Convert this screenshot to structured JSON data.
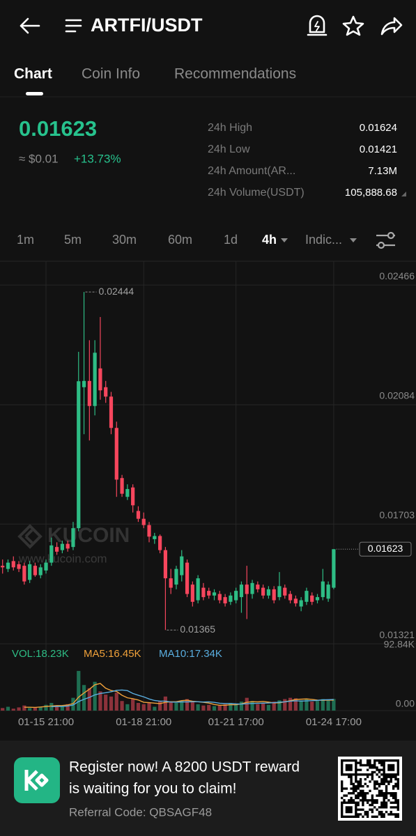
{
  "header": {
    "title": "ARTFI/USDT"
  },
  "tabs": [
    "Chart",
    "Coin Info",
    "Recommendations"
  ],
  "price": {
    "last": "0.01623",
    "usd": "≈ $0.01",
    "change": "+13.73%"
  },
  "stats": [
    [
      "24h High",
      "0.01624"
    ],
    [
      "24h Low",
      "0.01421"
    ],
    [
      "24h Amount(AR...",
      "7.13M"
    ],
    [
      "24h Volume(USDT)",
      "105,888.68"
    ]
  ],
  "timeframes": [
    "1m",
    "5m",
    "30m",
    "60m",
    "1d",
    "4h",
    "Indic..."
  ],
  "watermark": [
    "KUCOIN",
    "www.kucoin.com"
  ],
  "chart_data": [
    {
      "type": "candlestick",
      "categories": [
        null,
        null,
        null,
        null,
        null,
        null,
        null,
        null,
        "01-15 21:00",
        null,
        null,
        null,
        null,
        null,
        null,
        null,
        null,
        null,
        null,
        null,
        null,
        null,
        null,
        null,
        null,
        null,
        "01-18 21:00",
        null,
        null,
        null,
        null,
        null,
        null,
        null,
        null,
        null,
        null,
        null,
        null,
        null,
        null,
        null,
        null,
        "01-21 17:00",
        null,
        null,
        null,
        null,
        null,
        null,
        null,
        null,
        null,
        null,
        null,
        null,
        null,
        null,
        null,
        null,
        null,
        "01-24 17:00"
      ],
      "open": [
        0.0157,
        0.0156,
        0.01585,
        0.01575,
        0.0157,
        0.01525,
        0.0157,
        0.0154,
        0.01555,
        0.0158,
        0.0163,
        0.0162,
        0.0164,
        0.0163,
        0.0169,
        0.0214,
        0.0216,
        0.0208,
        0.022,
        0.0214,
        0.0211,
        0.0201,
        0.0185,
        0.0179,
        0.0182,
        0.01745,
        0.0172,
        0.017,
        0.01655,
        0.01665,
        0.0162,
        0.0153,
        0.0151,
        0.0154,
        0.0158,
        0.0151,
        0.0146,
        0.015,
        0.0149,
        0.01475,
        0.0148,
        0.0147,
        0.01455,
        0.0146,
        0.0147,
        0.0151,
        0.0148,
        0.0151,
        0.015,
        0.01475,
        0.01495,
        0.0147,
        0.015,
        0.0148,
        0.01465,
        0.0144,
        0.01455,
        0.01475,
        0.0146,
        0.0147,
        0.01465,
        0.015
      ],
      "high": [
        0.0159,
        0.0159,
        0.016,
        0.01585,
        0.0158,
        0.01585,
        0.0158,
        0.01575,
        0.0159,
        0.0166,
        0.01645,
        0.0165,
        0.0165,
        0.0171,
        0.02253,
        0.02444,
        0.0229,
        0.0229,
        0.02364,
        0.0216,
        0.02125,
        0.0203,
        0.0186,
        0.0183,
        0.0183,
        0.0176,
        0.0174,
        0.0171,
        0.01675,
        0.0167,
        0.0163,
        0.0156,
        0.0157,
        0.0162,
        0.0159,
        0.0152,
        0.0154,
        0.01515,
        0.015,
        0.01495,
        0.0149,
        0.0148,
        0.01485,
        0.015,
        0.0152,
        0.0157,
        0.01525,
        0.0152,
        0.0151,
        0.01505,
        0.01505,
        0.0155,
        0.0151,
        0.0149,
        0.01475,
        0.0147,
        0.015,
        0.01485,
        0.0148,
        0.0156,
        0.0152,
        0.01623
      ],
      "low": [
        0.01545,
        0.0155,
        0.01555,
        0.0155,
        0.0151,
        0.01515,
        0.01535,
        0.0153,
        0.01545,
        0.0157,
        0.01605,
        0.0161,
        0.01615,
        0.0162,
        0.0168,
        0.0199,
        0.0197,
        0.0205,
        0.021,
        0.0209,
        0.0199,
        0.0179,
        0.0179,
        0.0178,
        0.0174,
        0.0171,
        0.0169,
        0.01645,
        0.0164,
        0.0161,
        0.01365,
        0.0148,
        0.01495,
        0.0152,
        0.0147,
        0.0144,
        0.0145,
        0.0146,
        0.01465,
        0.0146,
        0.0145,
        0.0144,
        0.01445,
        0.0145,
        0.0142,
        0.014,
        0.01465,
        0.01485,
        0.01465,
        0.01465,
        0.0145,
        0.0146,
        0.01465,
        0.0145,
        0.0144,
        0.01425,
        0.01445,
        0.01445,
        0.0145,
        0.0146,
        0.01455,
        0.01495
      ],
      "close": [
        0.01565,
        0.0158,
        0.01565,
        0.0156,
        0.0152,
        0.01575,
        0.0154,
        0.01565,
        0.0158,
        0.01635,
        0.01615,
        0.0164,
        0.01625,
        0.0169,
        0.02159,
        0.0216,
        0.0208,
        0.0225,
        0.0213,
        0.0211,
        0.0201,
        0.01845,
        0.018,
        0.01815,
        0.01763,
        0.0172,
        0.017,
        0.01663,
        0.01665,
        0.0162,
        0.0153,
        0.015,
        0.0156,
        0.016,
        0.0148,
        0.01455,
        0.0153,
        0.0147,
        0.01475,
        0.01485,
        0.0146,
        0.0145,
        0.01475,
        0.0149,
        0.0151,
        0.0148,
        0.01515,
        0.01495,
        0.01475,
        0.01495,
        0.0146,
        0.01505,
        0.01475,
        0.0146,
        0.0145,
        0.0146,
        0.0149,
        0.01455,
        0.0147,
        0.0152,
        0.0151,
        0.01623
      ],
      "up_color": "#2ebd85",
      "down_color": "#f6465d",
      "ylim": [
        0.01319,
        0.02542
      ],
      "yticks": [
        0.02466,
        0.02084,
        0.01703,
        0.01321
      ],
      "grid": true
    },
    {
      "type": "bar",
      "series": [
        {
          "name": "VOL:18.23K",
          "color": "#2ebd85",
          "values": [
            4000,
            6000,
            3000,
            5000,
            8000,
            4000,
            5000,
            6000,
            9000,
            12000,
            7000,
            6000,
            10000,
            20000,
            62000,
            40000,
            35000,
            45000,
            30000,
            25000,
            22000,
            28000,
            15000,
            10000,
            18000,
            12000,
            10000,
            12000,
            6000,
            15000,
            22000,
            14000,
            12000,
            15000,
            18000,
            14000,
            10000,
            8000,
            9000,
            7000,
            8000,
            10000,
            12000,
            9000,
            14000,
            20000,
            15000,
            10000,
            12000,
            9000,
            14000,
            16000,
            18000,
            20000,
            19200,
            16000,
            18000,
            14000,
            15000,
            18000,
            17000,
            18230
          ]
        },
        {
          "name": "MA5:16.45K",
          "color": "#f0a13a",
          "values": [
            null,
            null,
            null,
            null,
            5200,
            5200,
            5000,
            5600,
            6400,
            7200,
            7800,
            8000,
            8800,
            11000,
            21000,
            27600,
            33400,
            40400,
            42400,
            35000,
            31400,
            30000,
            24000,
            20000,
            18600,
            16600,
            13000,
            12400,
            11600,
            11000,
            13000,
            13800,
            13800,
            15600,
            16200,
            14600,
            13800,
            13000,
            11800,
            9600,
            8400,
            8400,
            9200,
            9200,
            10600,
            13000,
            14000,
            13600,
            14200,
            13200,
            12000,
            12200,
            13800,
            15400,
            17440,
            17840,
            18240,
            17440,
            16440,
            16200,
            16400,
            16450
          ]
        },
        {
          "name": "MA10:17.34K",
          "color": "#5aaee0",
          "values": [
            null,
            null,
            null,
            null,
            null,
            null,
            null,
            null,
            null,
            6200,
            6500,
            6500,
            7200,
            8700,
            14100,
            17700,
            20700,
            24600,
            26700,
            28000,
            29500,
            31700,
            32200,
            31200,
            26800,
            24000,
            21500,
            18200,
            15800,
            14800,
            14800,
            13400,
            13100,
            13600,
            13600,
            13800,
            13800,
            13400,
            13700,
            12900,
            11500,
            11100,
            11100,
            10500,
            10100,
            10700,
            11200,
            11400,
            11700,
            11900,
            12500,
            13100,
            13700,
            14800,
            15320,
            14920,
            15220,
            15620,
            15920,
            16820,
            17120,
            17340
          ]
        }
      ],
      "up_color": "#1f6e52",
      "down_color": "#8c323b",
      "ylim": [
        0,
        98000
      ],
      "yticks": [
        {
          "value": 92840,
          "label": "92.84K"
        },
        {
          "value": 0,
          "label": "0.00"
        }
      ],
      "grid": false
    }
  ],
  "banner": {
    "lines": [
      "Register now! A 8200 USDT reward",
      "is waiting for you to claim!"
    ],
    "referral": "Referral Code: QBSAGF48"
  }
}
